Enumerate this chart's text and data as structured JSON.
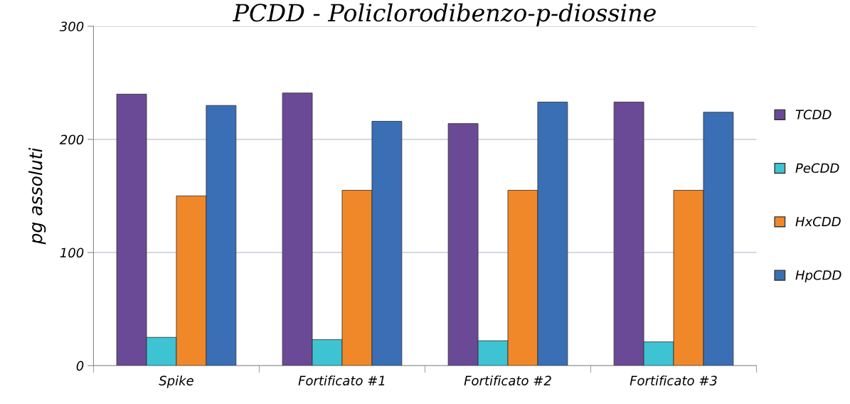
{
  "chart_data": {
    "type": "bar",
    "title": "PCDD - Policlorodibenzo-p-diossine",
    "ylabel": "pg assoluti",
    "categories": [
      "Spike",
      "Fortificato #1",
      "Fortificato #2",
      "Fortificato #3"
    ],
    "series": [
      {
        "name": "TCDD",
        "color": "#6a4a96",
        "values": [
          240,
          241,
          214,
          233
        ]
      },
      {
        "name": "PeCDD",
        "color": "#3ec3d3",
        "values": [
          25,
          23,
          22,
          21
        ]
      },
      {
        "name": "HxCDD",
        "color": "#f0882a",
        "values": [
          150,
          155,
          155,
          155
        ]
      },
      {
        "name": "HpCDD",
        "color": "#3a6fb5",
        "values": [
          230,
          216,
          233,
          224
        ]
      }
    ],
    "ylim": [
      0,
      300
    ],
    "yticks": [
      0,
      100,
      200,
      300
    ],
    "grid": "y",
    "legend": "right"
  }
}
